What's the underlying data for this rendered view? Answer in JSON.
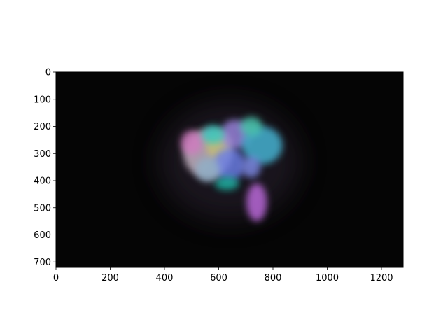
{
  "chart_data": {
    "type": "image",
    "title": "",
    "xlabel": "",
    "ylabel": "",
    "xlim": [
      0,
      1280
    ],
    "ylim": [
      720,
      0
    ],
    "x_ticks": [
      {
        "value": 0,
        "label": "0"
      },
      {
        "value": 200,
        "label": "200"
      },
      {
        "value": 400,
        "label": "400"
      },
      {
        "value": 600,
        "label": "600"
      },
      {
        "value": 800,
        "label": "800"
      },
      {
        "value": 1000,
        "label": "1000"
      },
      {
        "value": 1200,
        "label": "1200"
      }
    ],
    "y_ticks": [
      {
        "value": 0,
        "label": "0"
      },
      {
        "value": 100,
        "label": "100"
      },
      {
        "value": 200,
        "label": "200"
      },
      {
        "value": 300,
        "label": "300"
      },
      {
        "value": 400,
        "label": "400"
      },
      {
        "value": 500,
        "label": "500"
      },
      {
        "value": 600,
        "label": "600"
      },
      {
        "value": 700,
        "label": "700"
      }
    ],
    "image_content": {
      "background_color": "#050505",
      "blobs": [
        {
          "x": 560,
          "y": 300,
          "rx": 90,
          "ry": 90,
          "color": "#c9b8c8"
        },
        {
          "x": 500,
          "y": 260,
          "rx": 40,
          "ry": 45,
          "color": "#d07ac0"
        },
        {
          "x": 600,
          "y": 270,
          "rx": 45,
          "ry": 55,
          "color": "#c8c070"
        },
        {
          "x": 660,
          "y": 230,
          "rx": 55,
          "ry": 55,
          "color": "#9b86e0"
        },
        {
          "x": 760,
          "y": 270,
          "rx": 75,
          "ry": 70,
          "color": "#46b8d8"
        },
        {
          "x": 640,
          "y": 340,
          "rx": 60,
          "ry": 60,
          "color": "#6a7ee6"
        },
        {
          "x": 630,
          "y": 410,
          "rx": 45,
          "ry": 25,
          "color": "#1fb6a5"
        },
        {
          "x": 560,
          "y": 360,
          "rx": 45,
          "ry": 45,
          "color": "#8fb0c8"
        },
        {
          "x": 580,
          "y": 230,
          "rx": 40,
          "ry": 35,
          "color": "#36c8c2"
        },
        {
          "x": 720,
          "y": 200,
          "rx": 40,
          "ry": 35,
          "color": "#4ecfb6"
        },
        {
          "x": 740,
          "y": 480,
          "rx": 38,
          "ry": 70,
          "color": "#c06ce0"
        },
        {
          "x": 720,
          "y": 350,
          "rx": 35,
          "ry": 40,
          "color": "#7e8ae6"
        }
      ]
    }
  }
}
